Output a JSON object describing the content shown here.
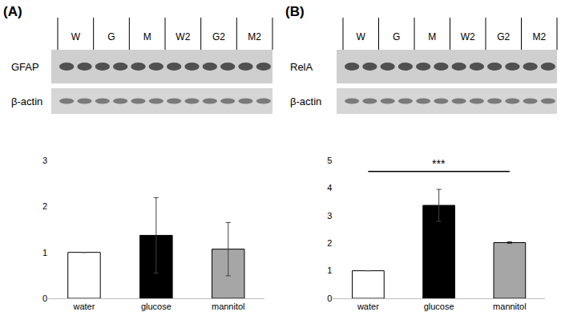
{
  "panels": [
    {
      "label": "(A)",
      "lanes": [
        "W",
        "G",
        "M",
        "W2",
        "G2",
        "M2"
      ],
      "rows": [
        "GFAP",
        "β-actin"
      ]
    },
    {
      "label": "(B)",
      "lanes": [
        "W",
        "G",
        "M",
        "W2",
        "G2",
        "M2"
      ],
      "rows": [
        "RelA",
        "β-actin"
      ]
    }
  ],
  "chart_data": [
    {
      "type": "bar",
      "categories": [
        "water",
        "glucose",
        "mannitol"
      ],
      "values": [
        1,
        1.37,
        1.07
      ],
      "errors": [
        null,
        0.82,
        0.58
      ],
      "colors": [
        "#ffffff",
        "#000000",
        "#a6a6a6"
      ],
      "ylim": [
        0,
        3
      ],
      "yticks": [
        0,
        1,
        2,
        3
      ],
      "grid": false
    },
    {
      "type": "bar",
      "categories": [
        "water",
        "glucose",
        "mannitol"
      ],
      "values": [
        1,
        3.37,
        2.02
      ],
      "errors": [
        null,
        0.58,
        0.03
      ],
      "colors": [
        "#ffffff",
        "#000000",
        "#a6a6a6"
      ],
      "ylim": [
        0,
        5
      ],
      "yticks": [
        0,
        1,
        2,
        3,
        4,
        5
      ],
      "grid": false,
      "annotations": [
        {
          "text": "***",
          "from": "water",
          "to": "mannitol"
        }
      ]
    }
  ]
}
